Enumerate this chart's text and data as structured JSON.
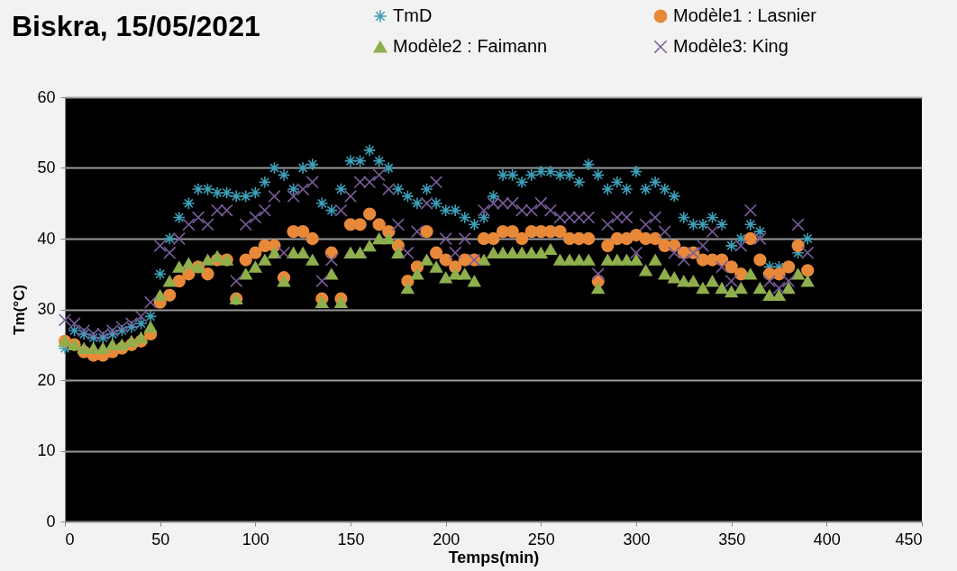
{
  "chart_data": {
    "type": "scatter",
    "title": "Biskra, 15/05/2021",
    "xlabel": "Temps(min)",
    "ylabel": "Tm(°C)",
    "xlim": [
      0,
      450
    ],
    "xticks": [
      0,
      50,
      100,
      150,
      200,
      250,
      300,
      350,
      400,
      450
    ],
    "ylim": [
      0,
      60
    ],
    "yticks": [
      0,
      10,
      20,
      30,
      40,
      50,
      60
    ],
    "grid": "y",
    "legend": "top",
    "x": [
      0,
      5,
      10,
      15,
      20,
      25,
      30,
      35,
      40,
      45,
      50,
      55,
      60,
      65,
      70,
      75,
      80,
      85,
      90,
      95,
      100,
      105,
      110,
      115,
      120,
      125,
      130,
      135,
      140,
      145,
      150,
      155,
      160,
      165,
      170,
      175,
      180,
      185,
      190,
      195,
      200,
      205,
      210,
      215,
      220,
      225,
      230,
      235,
      240,
      245,
      250,
      255,
      260,
      265,
      270,
      275,
      280,
      285,
      290,
      295,
      300,
      305,
      310,
      315,
      320,
      325,
      330,
      335,
      340,
      345,
      350,
      355,
      360,
      365,
      370,
      375,
      380,
      385,
      390
    ],
    "series": [
      {
        "name": "TmD",
        "color": "#3d9fb8",
        "marker": "cross",
        "values": [
          24.5,
          27,
          26.5,
          26,
          26,
          26.5,
          27,
          27.5,
          28,
          29,
          35,
          40,
          43,
          45,
          47,
          47,
          46.5,
          46.5,
          46,
          46,
          46.5,
          48,
          50,
          49,
          47,
          50,
          50.5,
          45,
          44,
          47,
          51,
          51,
          52.5,
          51,
          50,
          47,
          46,
          45,
          47,
          45,
          44,
          44,
          43,
          42,
          43,
          46,
          49,
          49,
          48,
          49,
          49.5,
          49.5,
          49,
          49,
          48,
          50.5,
          49,
          47,
          48,
          47,
          49.5,
          47,
          48,
          47,
          46,
          43,
          42,
          42,
          43,
          42,
          39,
          40,
          42,
          41,
          36,
          36,
          null,
          38,
          40
        ]
      },
      {
        "name": "Modèle1 :  Lasnier",
        "color": "#e8893a",
        "marker": "circle",
        "values": [
          25.5,
          25,
          24,
          23.5,
          23.5,
          24,
          24.5,
          25,
          25.5,
          26.5,
          31,
          32,
          34,
          35,
          36,
          35,
          37,
          37,
          31.5,
          37,
          38,
          39,
          39,
          34.5,
          41,
          41,
          40,
          31.5,
          38,
          31.5,
          42,
          42,
          43.5,
          42,
          41,
          39,
          34,
          36,
          41,
          38,
          37,
          36,
          37,
          37,
          40,
          40,
          41,
          41,
          40,
          41,
          41,
          41,
          41,
          40,
          40,
          40,
          34,
          39,
          40,
          40,
          40.5,
          40,
          40,
          39,
          39,
          38,
          38,
          37,
          37,
          37,
          36,
          35,
          40,
          37,
          35,
          35,
          36,
          39,
          35.5
        ]
      },
      {
        "name": "Modèle2 :  Faimann",
        "color": "#8fae4d",
        "marker": "triangle",
        "values": [
          25.5,
          25,
          24.5,
          24.5,
          24.5,
          25,
          25,
          25.5,
          26,
          27.5,
          32,
          34,
          36,
          36.5,
          36,
          37,
          37.5,
          37,
          31.5,
          35,
          36,
          37,
          38,
          34,
          38,
          38,
          37,
          31,
          35,
          31,
          38,
          38,
          39,
          40,
          40,
          38,
          33,
          35,
          37,
          36,
          34.5,
          35,
          35,
          34,
          37,
          38,
          38,
          38,
          38,
          38,
          38,
          38.5,
          37,
          37,
          37,
          37,
          33,
          37,
          37,
          37,
          37,
          35.5,
          37,
          35,
          34.5,
          34,
          34,
          33,
          34,
          33,
          32.5,
          33,
          35,
          33,
          32,
          32,
          33,
          35,
          34
        ]
      },
      {
        "name": "Modèle3:  King",
        "color": "#7a5c9c",
        "marker": "cross",
        "values": [
          28.5,
          28,
          27,
          26.5,
          26.5,
          27,
          27.5,
          28,
          29,
          31,
          39,
          38,
          40,
          42,
          43,
          42,
          44,
          44,
          34,
          42,
          43,
          44,
          46,
          38,
          46,
          47,
          48,
          34,
          37,
          44,
          46,
          48,
          48,
          49,
          47,
          42,
          38,
          41,
          45,
          48,
          40,
          38,
          40,
          37,
          44,
          45,
          45,
          45,
          44,
          44,
          45,
          44,
          43,
          43,
          43,
          43,
          35,
          42,
          43,
          43,
          38,
          42,
          43,
          41,
          38,
          37,
          38,
          39,
          41,
          36,
          34,
          39,
          44,
          40,
          34,
          33,
          34,
          42,
          38
        ]
      }
    ]
  }
}
